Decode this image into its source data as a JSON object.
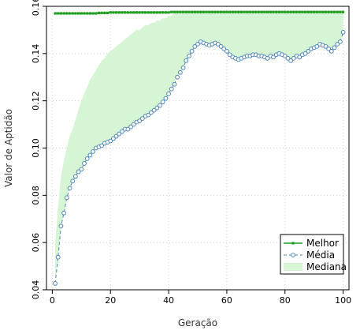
{
  "chart_data": {
    "type": "line",
    "title": "",
    "xlabel": "Geração",
    "ylabel": "Valor de Aptidão",
    "xlim": [
      -2,
      102
    ],
    "ylim": [
      0.04,
      0.16
    ],
    "xticks": [
      0,
      20,
      40,
      60,
      80,
      100
    ],
    "yticks": [
      0.04,
      0.06,
      0.08,
      0.1,
      0.12,
      0.14,
      0.16
    ],
    "ytick_labels": [
      "0.04",
      "0.06",
      "0.08",
      "0.10",
      "0.12",
      "0.14",
      "0.16"
    ],
    "grid": true,
    "legend_position": "bottom-right",
    "x": [
      1,
      2,
      3,
      4,
      5,
      6,
      7,
      8,
      9,
      10,
      11,
      12,
      13,
      14,
      15,
      16,
      17,
      18,
      19,
      20,
      21,
      22,
      23,
      24,
      25,
      26,
      27,
      28,
      29,
      30,
      31,
      32,
      33,
      34,
      35,
      36,
      37,
      38,
      39,
      40,
      41,
      42,
      43,
      44,
      45,
      46,
      47,
      48,
      49,
      50,
      51,
      52,
      53,
      54,
      55,
      56,
      57,
      58,
      59,
      60,
      61,
      62,
      63,
      64,
      65,
      66,
      67,
      68,
      69,
      70,
      71,
      72,
      73,
      74,
      75,
      76,
      77,
      78,
      79,
      80,
      81,
      82,
      83,
      84,
      85,
      86,
      87,
      88,
      89,
      90,
      91,
      92,
      93,
      94,
      95,
      96,
      97,
      98,
      99,
      100
    ],
    "series": [
      {
        "name": "Melhor",
        "color": "#1f9e1f",
        "style": "solid",
        "values": [
          0.157,
          0.157,
          0.157,
          0.157,
          0.157,
          0.157,
          0.157,
          0.157,
          0.157,
          0.157,
          0.157,
          0.157,
          0.157,
          0.157,
          0.157,
          0.1572,
          0.1572,
          0.1572,
          0.1572,
          0.1574,
          0.1574,
          0.1574,
          0.1574,
          0.1574,
          0.1574,
          0.1574,
          0.1574,
          0.1574,
          0.1574,
          0.1574,
          0.1574,
          0.1574,
          0.1574,
          0.1574,
          0.1574,
          0.1574,
          0.1574,
          0.1574,
          0.1574,
          0.1574,
          0.1576,
          0.1576,
          0.1576,
          0.1576,
          0.1576,
          0.1576,
          0.1576,
          0.1576,
          0.1576,
          0.1576,
          0.1576,
          0.1576,
          0.1576,
          0.1576,
          0.1576,
          0.1576,
          0.1576,
          0.1576,
          0.1576,
          0.1576,
          0.1576,
          0.1576,
          0.1576,
          0.1576,
          0.1576,
          0.1576,
          0.1576,
          0.1576,
          0.1576,
          0.1576,
          0.1576,
          0.1576,
          0.1576,
          0.1576,
          0.1576,
          0.1576,
          0.1576,
          0.1576,
          0.1576,
          0.1576,
          0.1576,
          0.1576,
          0.1576,
          0.1576,
          0.1576,
          0.1576,
          0.1576,
          0.1576,
          0.1576,
          0.1576,
          0.1576,
          0.1576,
          0.1576,
          0.1576,
          0.1576,
          0.1576,
          0.1576,
          0.1576,
          0.1576,
          0.1576
        ]
      },
      {
        "name": "Média",
        "color": "#4f86b8",
        "style": "dashed",
        "values": [
          0.0427,
          0.0538,
          0.067,
          0.0725,
          0.079,
          0.083,
          0.086,
          0.088,
          0.09,
          0.091,
          0.0935,
          0.0955,
          0.097,
          0.0985,
          0.1,
          0.1005,
          0.101,
          0.102,
          0.1025,
          0.103,
          0.104,
          0.105,
          0.106,
          0.107,
          0.108,
          0.108,
          0.109,
          0.11,
          0.111,
          0.1115,
          0.1125,
          0.1135,
          0.114,
          0.115,
          0.116,
          0.117,
          0.118,
          0.1195,
          0.121,
          0.123,
          0.125,
          0.127,
          0.13,
          0.132,
          0.134,
          0.137,
          0.139,
          0.141,
          0.143,
          0.144,
          0.145,
          0.1445,
          0.144,
          0.1435,
          0.144,
          0.1445,
          0.144,
          0.143,
          0.142,
          0.141,
          0.1395,
          0.1385,
          0.138,
          0.1375,
          0.138,
          0.1385,
          0.139,
          0.139,
          0.1395,
          0.1395,
          0.139,
          0.139,
          0.1385,
          0.138,
          0.139,
          0.1385,
          0.1395,
          0.14,
          0.1395,
          0.139,
          0.138,
          0.137,
          0.138,
          0.139,
          0.1385,
          0.1395,
          0.14,
          0.141,
          0.142,
          0.1425,
          0.143,
          0.144,
          0.1435,
          0.143,
          0.142,
          0.141,
          0.1425,
          0.144,
          0.145,
          0.149
        ]
      },
      {
        "name": "Mediana",
        "color": "#d5f5d5",
        "style": "area",
        "values": [
          0.06,
          0.075,
          0.088,
          0.095,
          0.1,
          0.105,
          0.108,
          0.112,
          0.116,
          0.12,
          0.123,
          0.126,
          0.129,
          0.131,
          0.133,
          0.135,
          0.137,
          0.138,
          0.14,
          0.141,
          0.142,
          0.143,
          0.144,
          0.145,
          0.146,
          0.147,
          0.148,
          0.149,
          0.15,
          0.15,
          0.151,
          0.152,
          0.152,
          0.153,
          0.153,
          0.154,
          0.154,
          0.155,
          0.155,
          0.156,
          0.156,
          0.157,
          0.1575,
          0.1576,
          0.1576,
          0.1576,
          0.1576,
          0.1576,
          0.1576,
          0.1576,
          0.1576,
          0.1576,
          0.1576,
          0.1576,
          0.1576,
          0.1576,
          0.1576,
          0.1576,
          0.1576,
          0.1576,
          0.1576,
          0.1576,
          0.1576,
          0.1576,
          0.1576,
          0.1576,
          0.1576,
          0.1576,
          0.1576,
          0.1576,
          0.1576,
          0.1576,
          0.1576,
          0.1576,
          0.1576,
          0.1576,
          0.1576,
          0.1576,
          0.1576,
          0.1576,
          0.1576,
          0.1576,
          0.1576,
          0.1576,
          0.1576,
          0.1576,
          0.1576,
          0.1576,
          0.1576,
          0.1576,
          0.1576,
          0.1576,
          0.1576,
          0.1576,
          0.1576,
          0.1576,
          0.1576,
          0.1576,
          0.1576,
          0.1576
        ]
      }
    ]
  }
}
